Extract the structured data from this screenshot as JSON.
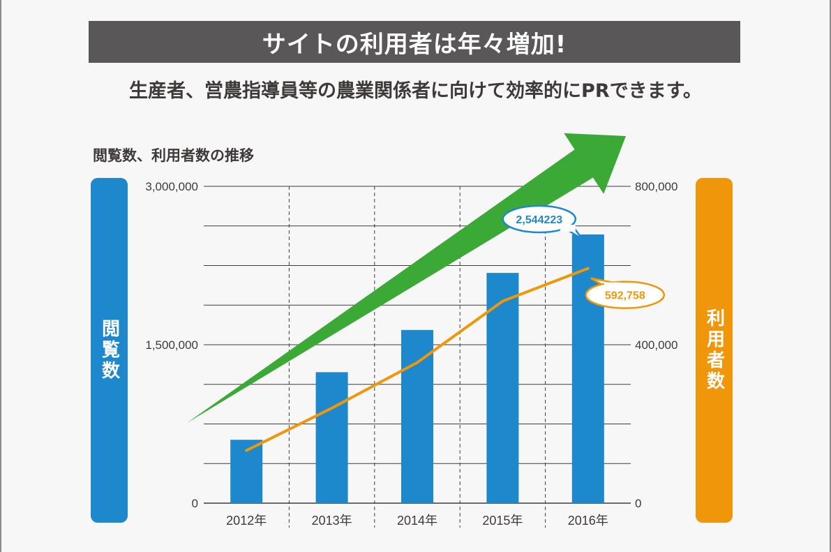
{
  "header": {
    "banner": "サイトの利用者は年々増加!",
    "subtitle": "生産者、営農指導員等の農業関係者に向けて効率的にPRできます。"
  },
  "chart": {
    "title": "閲覧数、利用者数の推移",
    "left_axis_label": "閲覧数",
    "right_axis_label": "利用者数"
  },
  "chart_data": {
    "type": "bar",
    "title": "閲覧数、利用者数の推移",
    "categories": [
      "2012年",
      "2013年",
      "2014年",
      "2015年",
      "2016年"
    ],
    "series": [
      {
        "name": "閲覧数",
        "type": "bar",
        "axis": "left",
        "color": "#1d88cc",
        "values": [
          600000,
          1240000,
          1640000,
          2180000,
          2544223
        ]
      },
      {
        "name": "利用者数",
        "type": "line",
        "axis": "right",
        "color": "#f0960a",
        "values": [
          133000,
          240000,
          355000,
          510000,
          592758
        ]
      }
    ],
    "left_axis": {
      "label": "閲覧数",
      "ylim": [
        0,
        3000000
      ],
      "ticks": [
        "0",
        "1,500,000",
        "3,000,000"
      ]
    },
    "right_axis": {
      "label": "利用者数",
      "ylim": [
        0,
        800000
      ],
      "ticks": [
        "0",
        "400,000",
        "800,000"
      ]
    },
    "annotations": [
      {
        "text": "2,544223",
        "series": "閲覧数",
        "category": "2016年",
        "color": "#1d88cc"
      },
      {
        "text": "592,758",
        "series": "利用者数",
        "category": "2016年",
        "color": "#f0960a"
      }
    ],
    "trend_arrow_color": "#3aa935",
    "grid": true
  }
}
